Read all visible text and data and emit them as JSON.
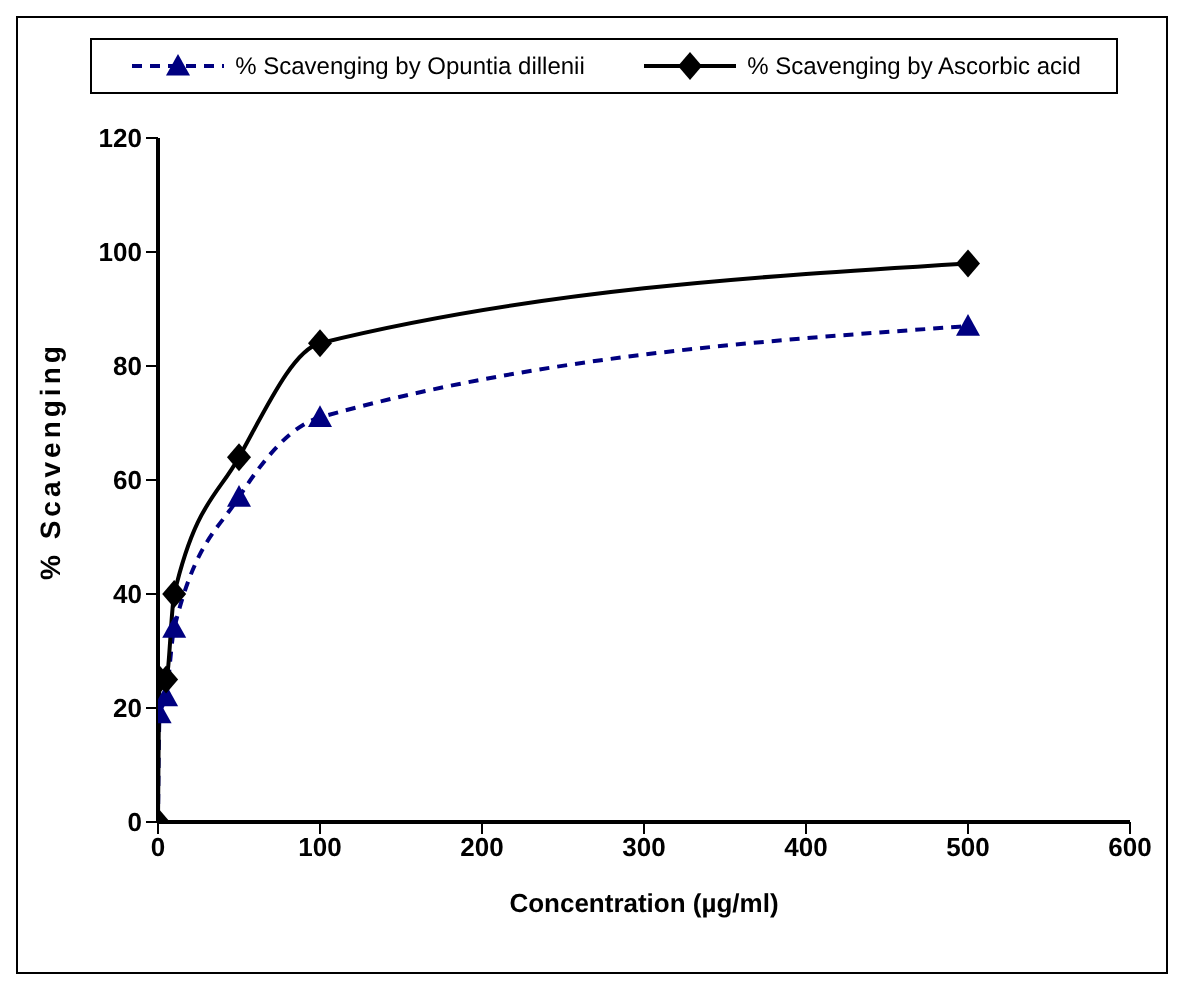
{
  "chart_data": {
    "type": "line",
    "xlabel": "Concentration (µg/ml)",
    "ylabel": "% Scavenging",
    "x": [
      0,
      1,
      5,
      10,
      50,
      100,
      500
    ],
    "series": [
      {
        "name": "% Scavenging by Opuntia dillenii",
        "color": "#000080",
        "values": [
          0,
          19,
          22,
          34,
          57,
          71,
          87
        ],
        "marker": "triangle",
        "line_style": "dashed"
      },
      {
        "name": "% Scavenging by Ascorbic acid",
        "color": "#000000",
        "values": [
          0,
          25,
          25,
          40,
          64,
          84,
          98
        ],
        "marker": "diamond",
        "line_style": "solid"
      }
    ],
    "xlim": [
      0,
      600
    ],
    "xticks": [
      0,
      100,
      200,
      300,
      400,
      500,
      600
    ],
    "ylim": [
      0,
      120
    ],
    "yticks": [
      0,
      20,
      40,
      60,
      80,
      100,
      120
    ],
    "grid": false,
    "legend": "top"
  }
}
